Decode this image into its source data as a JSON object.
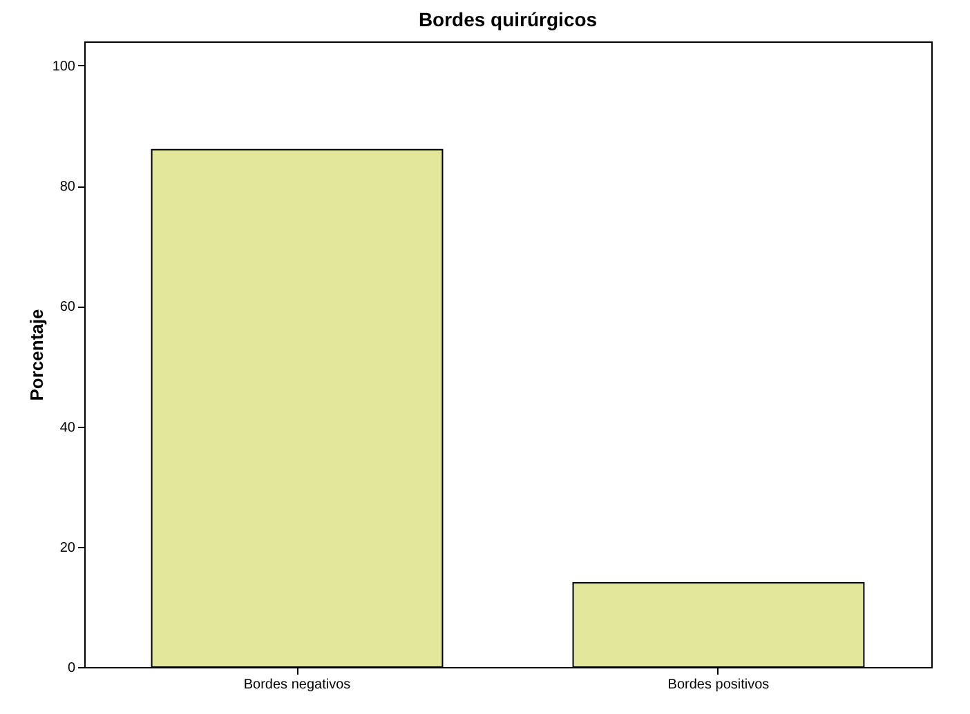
{
  "chart_data": {
    "type": "bar",
    "title": "Bordes quirúrgicos",
    "ylabel": "Porcentaje",
    "categories": [
      "Bordes negativos",
      "Bordes positivos"
    ],
    "values": [
      86,
      14
    ],
    "color": "#e3e79c",
    "ylim": [
      0,
      104
    ],
    "yticks": [
      0,
      20,
      40,
      60,
      80,
      100
    ],
    "grid": false
  }
}
